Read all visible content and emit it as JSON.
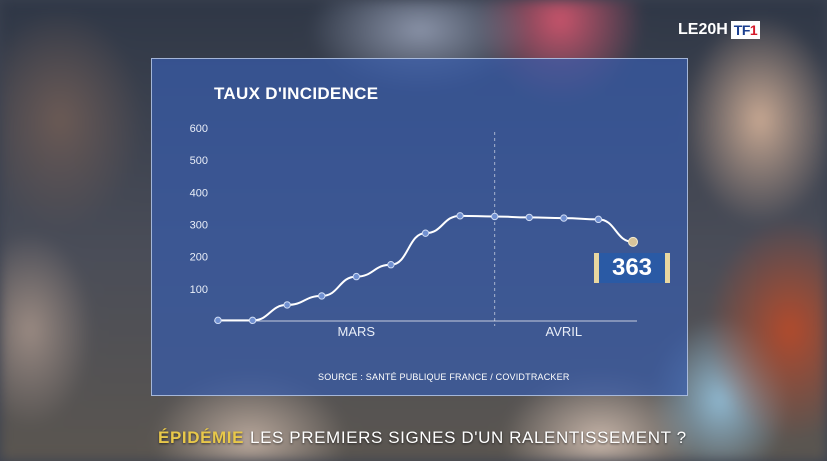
{
  "broadcast": {
    "logo_text": "LE20H",
    "logo_channel": "TF",
    "logo_channel_num": "1"
  },
  "headline": {
    "keyword": "ÉPIDÉMIE",
    "text": "LES PREMIERS SIGNES D'UN RALENTISSEMENT ?"
  },
  "value_badge": "363",
  "source": "SOURCE : SANTÉ PUBLIQUE FRANCE / COVIDTRACKER",
  "colors": {
    "panel": "#385caa",
    "line": "#ffffff",
    "badge_border": "#e8d7a0",
    "keyword": "#e8c84a"
  },
  "chart_data": {
    "type": "line",
    "title": "TAUX D'INCIDENCE",
    "xlabel": "",
    "ylabel": "",
    "yticks": [
      100,
      200,
      300,
      400,
      500,
      600
    ],
    "ylim": [
      0,
      600
    ],
    "xlim": [
      0,
      12
    ],
    "month_labels": [
      {
        "label": "MARS",
        "x": 4
      },
      {
        "label": "AVRIL",
        "x": 10
      }
    ],
    "divider_x": 8,
    "grid": false,
    "series": [
      {
        "x": [
          0,
          1,
          2,
          3,
          4,
          5,
          6,
          7,
          8,
          9,
          10,
          11,
          12
        ],
        "values": [
          2,
          2,
          50,
          78,
          138,
          175,
          273,
          327,
          325,
          322,
          320,
          316,
          246
        ]
      }
    ]
  }
}
